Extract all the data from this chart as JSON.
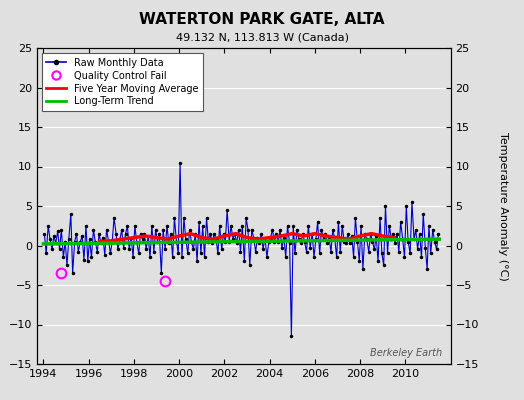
{
  "title": "WATERTON PARK GATE, ALTA",
  "subtitle": "49.132 N, 113.813 W (Canada)",
  "ylabel": "Temperature Anomaly (°C)",
  "watermark": "Berkeley Earth",
  "xlim": [
    1993.7,
    2012.0
  ],
  "ylim": [
    -15,
    25
  ],
  "yticks": [
    -15,
    -10,
    -5,
    0,
    5,
    10,
    15,
    20,
    25
  ],
  "xticks": [
    1994,
    1996,
    1998,
    2000,
    2002,
    2004,
    2006,
    2008,
    2010
  ],
  "background_color": "#e0e0e0",
  "plot_background": "#e0e0e0",
  "raw_color": "#0000cc",
  "ma_color": "#ff0000",
  "trend_color": "#00bb00",
  "qc_color": "#ff00ff",
  "raw_data": {
    "times": [
      1994.04,
      1994.12,
      1994.21,
      1994.29,
      1994.38,
      1994.46,
      1994.54,
      1994.63,
      1994.71,
      1994.79,
      1994.88,
      1994.96,
      1995.04,
      1995.12,
      1995.21,
      1995.29,
      1995.38,
      1995.46,
      1995.54,
      1995.63,
      1995.71,
      1995.79,
      1995.88,
      1995.96,
      1996.04,
      1996.12,
      1996.21,
      1996.29,
      1996.38,
      1996.46,
      1996.54,
      1996.63,
      1996.71,
      1996.79,
      1996.88,
      1996.96,
      1997.04,
      1997.12,
      1997.21,
      1997.29,
      1997.38,
      1997.46,
      1997.54,
      1997.63,
      1997.71,
      1997.79,
      1997.88,
      1997.96,
      1998.04,
      1998.12,
      1998.21,
      1998.29,
      1998.38,
      1998.46,
      1998.54,
      1998.63,
      1998.71,
      1998.79,
      1998.88,
      1998.96,
      1999.04,
      1999.12,
      1999.21,
      1999.29,
      1999.38,
      1999.46,
      1999.54,
      1999.63,
      1999.71,
      1999.79,
      1999.88,
      1999.96,
      2000.04,
      2000.12,
      2000.21,
      2000.29,
      2000.38,
      2000.46,
      2000.54,
      2000.63,
      2000.71,
      2000.79,
      2000.88,
      2000.96,
      2001.04,
      2001.12,
      2001.21,
      2001.29,
      2001.38,
      2001.46,
      2001.54,
      2001.63,
      2001.71,
      2001.79,
      2001.88,
      2001.96,
      2002.04,
      2002.12,
      2002.21,
      2002.29,
      2002.38,
      2002.46,
      2002.54,
      2002.63,
      2002.71,
      2002.79,
      2002.88,
      2002.96,
      2003.04,
      2003.12,
      2003.21,
      2003.29,
      2003.38,
      2003.46,
      2003.54,
      2003.63,
      2003.71,
      2003.79,
      2003.88,
      2003.96,
      2004.04,
      2004.12,
      2004.21,
      2004.29,
      2004.38,
      2004.46,
      2004.54,
      2004.63,
      2004.71,
      2004.79,
      2004.88,
      2004.96,
      2005.04,
      2005.12,
      2005.21,
      2005.29,
      2005.38,
      2005.46,
      2005.54,
      2005.63,
      2005.71,
      2005.79,
      2005.88,
      2005.96,
      2006.04,
      2006.12,
      2006.21,
      2006.29,
      2006.38,
      2006.46,
      2006.54,
      2006.63,
      2006.71,
      2006.79,
      2006.88,
      2006.96,
      2007.04,
      2007.12,
      2007.21,
      2007.29,
      2007.38,
      2007.46,
      2007.54,
      2007.63,
      2007.71,
      2007.79,
      2007.88,
      2007.96,
      2008.04,
      2008.12,
      2008.21,
      2008.29,
      2008.38,
      2008.46,
      2008.54,
      2008.63,
      2008.71,
      2008.79,
      2008.88,
      2008.96,
      2009.04,
      2009.12,
      2009.21,
      2009.29,
      2009.38,
      2009.46,
      2009.54,
      2009.63,
      2009.71,
      2009.79,
      2009.88,
      2009.96,
      2010.04,
      2010.12,
      2010.21,
      2010.29,
      2010.38,
      2010.46,
      2010.54,
      2010.63,
      2010.71,
      2010.79,
      2010.88,
      2010.96,
      2011.04,
      2011.12,
      2011.21,
      2011.29,
      2011.38,
      2011.46
    ],
    "values": [
      1.5,
      -1.0,
      2.5,
      0.8,
      -0.5,
      1.2,
      0.3,
      1.8,
      -0.5,
      2.0,
      -1.5,
      0.5,
      -2.5,
      0.8,
      4.0,
      -3.5,
      0.5,
      1.5,
      -0.8,
      0.5,
      1.2,
      -1.8,
      2.5,
      -2.0,
      0.8,
      -1.5,
      2.0,
      0.5,
      -0.8,
      1.5,
      0.3,
      1.0,
      -1.2,
      2.0,
      0.5,
      -1.0,
      0.5,
      3.5,
      1.5,
      -0.5,
      0.8,
      2.0,
      -0.3,
      1.5,
      2.5,
      -0.5,
      1.0,
      -1.5,
      2.5,
      0.5,
      -1.0,
      1.5,
      0.8,
      1.5,
      -0.5,
      1.2,
      -1.5,
      2.5,
      -0.8,
      2.0,
      0.5,
      1.5,
      -3.5,
      2.0,
      -0.5,
      2.5,
      0.3,
      1.5,
      -1.5,
      3.5,
      0.5,
      -1.0,
      10.5,
      -1.5,
      3.5,
      0.8,
      -1.0,
      2.0,
      0.5,
      -0.5,
      1.5,
      -2.0,
      3.0,
      -1.0,
      2.5,
      -1.5,
      3.5,
      0.5,
      1.5,
      0.3,
      1.5,
      0.8,
      -1.0,
      2.5,
      -0.5,
      1.5,
      0.5,
      4.5,
      0.5,
      2.5,
      0.8,
      1.5,
      0.3,
      2.0,
      -0.8,
      2.5,
      -2.0,
      3.5,
      2.0,
      -2.5,
      2.0,
      1.0,
      -0.8,
      1.0,
      0.3,
      1.5,
      -0.5,
      1.0,
      -1.5,
      0.5,
      1.0,
      2.0,
      0.5,
      1.5,
      0.5,
      2.0,
      -0.3,
      1.0,
      -1.5,
      2.5,
      0.3,
      -11.5,
      2.5,
      -1.0,
      2.0,
      0.8,
      0.3,
      1.5,
      0.5,
      -0.8,
      2.5,
      -0.3,
      1.5,
      -1.5,
      0.8,
      3.0,
      -1.0,
      2.0,
      0.8,
      1.5,
      0.3,
      0.8,
      -0.8,
      2.0,
      0.8,
      -1.5,
      3.0,
      -0.8,
      2.5,
      0.5,
      0.3,
      1.5,
      0.3,
      1.2,
      -1.5,
      3.5,
      0.5,
      -2.0,
      2.5,
      -3.0,
      1.5,
      0.8,
      -0.8,
      1.5,
      0.5,
      -0.5,
      1.2,
      -2.0,
      3.5,
      -1.0,
      -2.5,
      5.0,
      -1.0,
      2.5,
      0.8,
      1.5,
      0.3,
      1.5,
      -0.8,
      3.0,
      0.8,
      -1.5,
      5.0,
      0.5,
      -1.0,
      5.5,
      0.8,
      2.0,
      -0.5,
      1.5,
      -1.5,
      4.0,
      -0.3,
      -3.0,
      2.5,
      -1.0,
      2.0,
      0.5,
      -0.5,
      1.5
    ],
    "qc_fail_times": [
      1994.79,
      1999.38
    ],
    "qc_fail_values": [
      -3.5,
      -4.5
    ]
  },
  "moving_avg": {
    "times": [
      1996.5,
      1997.0,
      1997.5,
      1998.0,
      1998.5,
      1999.0,
      1999.5,
      2000.0,
      2000.5,
      2001.0,
      2001.5,
      2002.0,
      2002.5,
      2003.0,
      2003.5,
      2004.0,
      2004.5,
      2005.0,
      2005.5,
      2006.0,
      2006.5,
      2007.0,
      2007.5,
      2008.0,
      2008.5,
      2009.0,
      2009.5
    ],
    "values": [
      0.5,
      0.6,
      0.8,
      1.0,
      1.2,
      1.0,
      0.8,
      1.2,
      1.5,
      1.0,
      0.8,
      1.2,
      1.5,
      1.0,
      0.8,
      1.0,
      1.2,
      1.5,
      1.2,
      1.5,
      1.2,
      1.0,
      0.8,
      1.2,
      1.5,
      1.2,
      1.0
    ]
  },
  "trend": {
    "times": [
      1994.0,
      2011.5
    ],
    "values": [
      0.2,
      0.8
    ]
  }
}
